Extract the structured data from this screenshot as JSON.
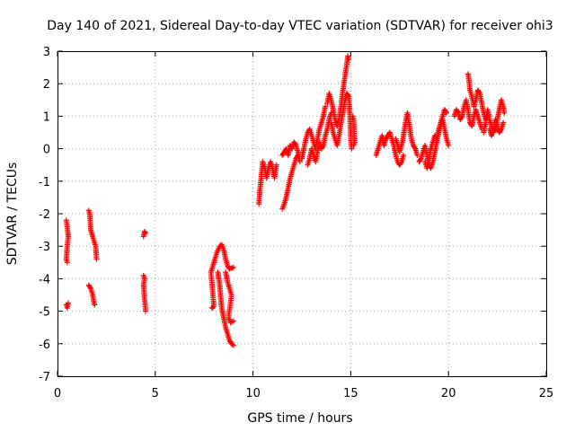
{
  "chart_data": {
    "type": "scatter",
    "title": "Day 140 of 2021, Sidereal Day-to-day VTEC variation (SDTVAR) for receiver ohi3",
    "xlabel": "GPS time / hours",
    "ylabel": "SDTVAR / TECUs",
    "xlim": [
      0,
      25
    ],
    "ylim": [
      -7,
      3
    ],
    "x_ticks": [
      "0",
      "5",
      "10",
      "15",
      "20",
      "25"
    ],
    "y_ticks": [
      "-7",
      "-6",
      "-5",
      "-4",
      "-3",
      "-2",
      "-1",
      "0",
      "1",
      "2",
      "3"
    ],
    "grid": true,
    "marker": "plus",
    "color": "#ff0000",
    "series": [
      {
        "name": "SDTVAR",
        "segments": [
          [
            [
              0.45,
              -2.2
            ],
            [
              0.5,
              -2.4
            ],
            [
              0.55,
              -2.7
            ],
            [
              0.5,
              -3.0
            ],
            [
              0.45,
              -3.4
            ],
            [
              0.5,
              -3.5
            ]
          ],
          [
            [
              0.45,
              -4.8
            ],
            [
              0.5,
              -4.9
            ],
            [
              0.55,
              -4.75
            ]
          ],
          [
            [
              1.6,
              -1.9
            ],
            [
              1.65,
              -2.0
            ],
            [
              1.7,
              -2.5
            ],
            [
              1.8,
              -2.7
            ],
            [
              1.9,
              -2.9
            ],
            [
              1.95,
              -3.0
            ],
            [
              2.0,
              -3.4
            ]
          ],
          [
            [
              1.6,
              -4.2
            ],
            [
              1.7,
              -4.3
            ],
            [
              1.8,
              -4.5
            ],
            [
              1.85,
              -4.7
            ],
            [
              1.9,
              -4.8
            ]
          ],
          [
            [
              4.4,
              -2.7
            ],
            [
              4.45,
              -2.55
            ],
            [
              4.5,
              -2.6
            ]
          ],
          [
            [
              4.4,
              -3.9
            ],
            [
              4.45,
              -4.0
            ],
            [
              4.4,
              -4.2
            ],
            [
              4.45,
              -4.6
            ],
            [
              4.5,
              -4.9
            ],
            [
              4.5,
              -5.0
            ]
          ],
          [
            [
              7.9,
              -4.9
            ],
            [
              8.0,
              -4.85
            ],
            [
              7.85,
              -3.8
            ],
            [
              7.95,
              -3.6
            ],
            [
              8.05,
              -3.4
            ],
            [
              8.15,
              -3.2
            ],
            [
              8.3,
              -3.0
            ],
            [
              8.4,
              -2.95
            ],
            [
              8.5,
              -3.1
            ],
            [
              8.6,
              -3.4
            ],
            [
              8.7,
              -3.6
            ],
            [
              8.8,
              -3.7
            ],
            [
              9.0,
              -3.65
            ]
          ],
          [
            [
              8.2,
              -3.8
            ],
            [
              8.3,
              -4.2
            ],
            [
              8.35,
              -4.6
            ],
            [
              8.4,
              -4.9
            ],
            [
              8.5,
              -5.2
            ],
            [
              8.6,
              -5.5
            ],
            [
              8.7,
              -5.7
            ],
            [
              8.8,
              -5.9
            ],
            [
              8.9,
              -6.0
            ],
            [
              9.0,
              -6.05
            ]
          ],
          [
            [
              8.6,
              -3.8
            ],
            [
              8.7,
              -4.1
            ],
            [
              8.8,
              -4.3
            ],
            [
              8.9,
              -4.5
            ],
            [
              8.75,
              -5.2
            ],
            [
              8.85,
              -5.35
            ],
            [
              9.0,
              -5.3
            ]
          ],
          [
            [
              10.3,
              -1.7
            ],
            [
              10.35,
              -1.3
            ],
            [
              10.4,
              -1.0
            ],
            [
              10.45,
              -0.7
            ],
            [
              10.5,
              -0.4
            ],
            [
              10.6,
              -0.6
            ],
            [
              10.7,
              -0.9
            ],
            [
              10.8,
              -0.6
            ],
            [
              10.9,
              -0.4
            ],
            [
              11.0,
              -0.6
            ],
            [
              11.1,
              -0.9
            ],
            [
              11.2,
              -0.5
            ]
          ],
          [
            [
              11.5,
              -1.85
            ],
            [
              11.6,
              -1.7
            ],
            [
              11.7,
              -1.5
            ],
            [
              11.8,
              -1.2
            ],
            [
              11.9,
              -0.9
            ],
            [
              12.0,
              -0.7
            ],
            [
              12.1,
              -0.5
            ],
            [
              12.2,
              -0.3
            ],
            [
              12.3,
              -0.2
            ]
          ],
          [
            [
              11.5,
              -0.2
            ],
            [
              11.6,
              -0.1
            ],
            [
              11.7,
              0.0
            ],
            [
              11.8,
              -0.2
            ],
            [
              11.9,
              0.1
            ],
            [
              12.0,
              0.0
            ],
            [
              12.1,
              0.2
            ],
            [
              12.2,
              0.1
            ],
            [
              12.3,
              -0.1
            ],
            [
              12.4,
              -0.4
            ]
          ],
          [
            [
              12.5,
              -0.3
            ],
            [
              12.6,
              0.0
            ],
            [
              12.7,
              0.3
            ],
            [
              12.8,
              0.5
            ],
            [
              12.9,
              0.6
            ],
            [
              13.0,
              0.4
            ],
            [
              13.1,
              0.2
            ],
            [
              13.2,
              0.0
            ],
            [
              13.3,
              0.3
            ],
            [
              13.4,
              0.6
            ],
            [
              13.5,
              0.8
            ],
            [
              13.6,
              1.0
            ],
            [
              13.7,
              1.3
            ]
          ],
          [
            [
              12.8,
              -0.5
            ],
            [
              12.9,
              -0.3
            ],
            [
              13.0,
              0.0
            ],
            [
              13.1,
              -0.2
            ],
            [
              13.2,
              -0.4
            ],
            [
              13.3,
              -0.1
            ],
            [
              13.4,
              0.2
            ],
            [
              13.5,
              0.0
            ],
            [
              13.6,
              0.1
            ],
            [
              13.7,
              0.4
            ],
            [
              13.8,
              0.6
            ],
            [
              13.9,
              0.9
            ],
            [
              14.0,
              1.1
            ]
          ],
          [
            [
              13.8,
              1.4
            ],
            [
              13.9,
              1.7
            ],
            [
              14.0,
              1.5
            ],
            [
              14.1,
              1.2
            ],
            [
              14.2,
              0.9
            ],
            [
              14.3,
              0.7
            ],
            [
              14.4,
              0.9
            ],
            [
              14.5,
              1.3
            ],
            [
              14.6,
              1.8
            ],
            [
              14.7,
              2.2
            ],
            [
              14.8,
              2.6
            ],
            [
              14.85,
              2.85
            ],
            [
              14.9,
              2.75
            ]
          ],
          [
            [
              14.0,
              0.8
            ],
            [
              14.1,
              0.5
            ],
            [
              14.2,
              0.3
            ],
            [
              14.3,
              0.1
            ],
            [
              14.4,
              0.4
            ],
            [
              14.5,
              0.8
            ],
            [
              14.6,
              1.1
            ],
            [
              14.7,
              1.5
            ],
            [
              14.8,
              1.7
            ],
            [
              14.9,
              1.6
            ],
            [
              14.95,
              1.1
            ],
            [
              15.0,
              0.3
            ],
            [
              15.05,
              0.0
            ]
          ],
          [
            [
              15.1,
              1.0
            ],
            [
              15.15,
              0.9
            ],
            [
              15.2,
              0.2
            ],
            [
              15.15,
              0.1
            ]
          ],
          [
            [
              16.3,
              -0.2
            ],
            [
              16.4,
              0.0
            ],
            [
              16.5,
              0.2
            ],
            [
              16.6,
              0.4
            ],
            [
              16.7,
              0.1
            ],
            [
              16.8,
              0.3
            ],
            [
              16.9,
              0.4
            ],
            [
              17.0,
              0.5
            ],
            [
              17.1,
              0.3
            ],
            [
              17.2,
              0.1
            ],
            [
              17.3,
              -0.2
            ],
            [
              17.4,
              -0.4
            ],
            [
              17.5,
              -0.5
            ],
            [
              17.6,
              -0.4
            ],
            [
              17.7,
              -0.2
            ]
          ],
          [
            [
              17.3,
              0.3
            ],
            [
              17.4,
              0.1
            ],
            [
              17.5,
              -0.1
            ],
            [
              17.6,
              0.1
            ],
            [
              17.7,
              0.4
            ],
            [
              17.8,
              0.8
            ],
            [
              17.9,
              1.1
            ],
            [
              18.0,
              0.7
            ],
            [
              18.1,
              0.3
            ],
            [
              18.2,
              0.1
            ],
            [
              18.3,
              0.0
            ],
            [
              18.4,
              -0.2
            ]
          ],
          [
            [
              18.5,
              -0.4
            ],
            [
              18.6,
              -0.3
            ],
            [
              18.7,
              -0.1
            ],
            [
              18.8,
              0.1
            ],
            [
              18.9,
              -0.2
            ],
            [
              19.0,
              -0.5
            ],
            [
              19.1,
              -0.6
            ],
            [
              19.2,
              -0.4
            ],
            [
              19.3,
              -0.1
            ],
            [
              19.4,
              0.2
            ],
            [
              19.5,
              0.5
            ],
            [
              19.6,
              0.7
            ],
            [
              19.7,
              0.9
            ],
            [
              19.8,
              0.6
            ],
            [
              19.9,
              0.3
            ],
            [
              20.0,
              0.1
            ]
          ],
          [
            [
              18.8,
              -0.4
            ],
            [
              18.9,
              -0.6
            ],
            [
              19.0,
              -0.3
            ],
            [
              19.1,
              0.0
            ],
            [
              19.2,
              0.2
            ],
            [
              19.3,
              0.4
            ],
            [
              19.4,
              0.3
            ],
            [
              19.5,
              0.6
            ],
            [
              19.6,
              0.8
            ],
            [
              19.7,
              1.0
            ],
            [
              19.8,
              1.2
            ],
            [
              19.9,
              1.1
            ]
          ],
          [
            [
              20.3,
              1.0
            ],
            [
              20.4,
              1.2
            ],
            [
              20.5,
              1.1
            ],
            [
              20.6,
              0.9
            ],
            [
              20.7,
              1.0
            ],
            [
              20.8,
              1.3
            ],
            [
              20.9,
              1.5
            ],
            [
              21.0,
              1.2
            ],
            [
              21.1,
              0.8
            ],
            [
              21.2,
              0.7
            ],
            [
              21.3,
              1.0
            ],
            [
              21.4,
              1.2
            ],
            [
              21.5,
              1.0
            ],
            [
              21.6,
              0.8
            ],
            [
              21.7,
              0.6
            ]
          ],
          [
            [
              21.0,
              2.3
            ],
            [
              21.05,
              2.1
            ],
            [
              21.1,
              1.8
            ],
            [
              21.2,
              1.6
            ],
            [
              21.3,
              1.3
            ],
            [
              21.4,
              1.5
            ],
            [
              21.5,
              1.8
            ],
            [
              21.6,
              1.7
            ],
            [
              21.7,
              1.4
            ],
            [
              21.8,
              1.1
            ],
            [
              21.9,
              0.9
            ],
            [
              22.0,
              1.0
            ]
          ],
          [
            [
              21.8,
              0.5
            ],
            [
              21.9,
              0.8
            ],
            [
              22.0,
              1.2
            ],
            [
              22.1,
              0.9
            ],
            [
              22.2,
              0.7
            ],
            [
              22.3,
              0.5
            ],
            [
              22.4,
              0.6
            ],
            [
              22.5,
              0.9
            ],
            [
              22.6,
              1.2
            ],
            [
              22.7,
              1.5
            ],
            [
              22.8,
              1.3
            ],
            [
              22.85,
              1.1
            ]
          ],
          [
            [
              22.1,
              0.6
            ],
            [
              22.2,
              0.4
            ],
            [
              22.3,
              0.6
            ],
            [
              22.4,
              0.9
            ],
            [
              22.5,
              0.7
            ],
            [
              22.6,
              0.5
            ],
            [
              22.7,
              0.6
            ],
            [
              22.8,
              0.8
            ]
          ]
        ]
      }
    ]
  }
}
